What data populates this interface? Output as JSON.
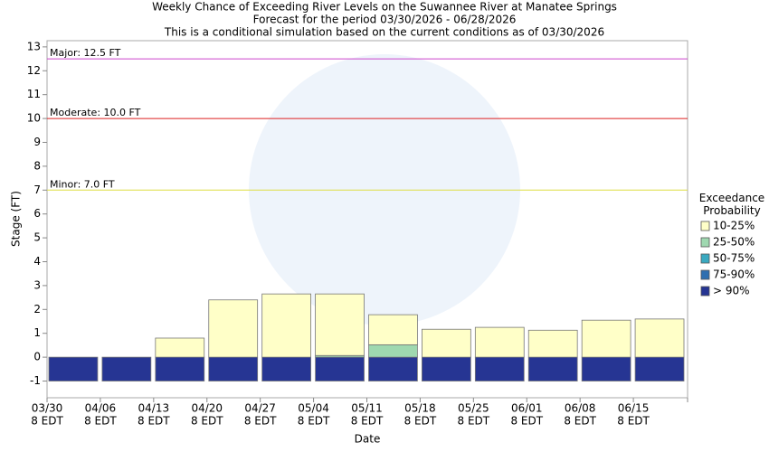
{
  "chart_data": {
    "type": "stacked_bar",
    "title": "Weekly Chance of Exceeding River Levels on the Suwannee River at Manatee Springs",
    "subtitle": "Forecast for the period 03/30/2026 - 06/28/2026",
    "subtitle2": "This is a conditional simulation based on the current conditions as of 03/30/2026",
    "x_label": "Date",
    "y_label": "Stage (FT)",
    "categories": [
      "03/30",
      "04/06",
      "04/13",
      "04/20",
      "04/27",
      "05/04",
      "05/11",
      "05/18",
      "05/25",
      "06/01",
      "06/08",
      "06/15"
    ],
    "category_times": [
      "8 EDT",
      "8 EDT",
      "8 EDT",
      "8 EDT",
      "8 EDT",
      "8 EDT",
      "8 EDT",
      "8 EDT",
      "8 EDT",
      "8 EDT",
      "8 EDT",
      "8 EDT"
    ],
    "series": [
      {
        "name": "> 90%",
        "color": "#263593",
        "values": [
          1,
          1,
          1,
          1,
          1,
          1,
          1,
          1,
          1,
          1,
          1,
          1
        ]
      },
      {
        "name": "75-90%",
        "color": "#2f6fb0",
        "values": [
          0,
          0,
          0,
          0,
          0,
          0,
          0,
          0,
          0,
          0,
          0,
          0
        ]
      },
      {
        "name": "50-75%",
        "color": "#3aa9c0",
        "values": [
          0,
          0,
          0,
          0,
          0,
          0,
          0,
          0,
          0,
          0,
          0,
          0
        ]
      },
      {
        "name": "25-50%",
        "color": "#9fd8b0",
        "values": [
          0,
          0,
          0,
          0,
          0,
          0.07,
          0.52,
          0,
          0,
          0,
          0,
          0
        ]
      },
      {
        "name": "10-25%",
        "color": "#ffffc8",
        "values": [
          0,
          0,
          0.8,
          2.4,
          2.65,
          2.58,
          1.26,
          1.17,
          1.25,
          1.13,
          1.55,
          1.6
        ]
      }
    ],
    "legend_title": "Exceedance Probability",
    "thresholds": [
      {
        "label": "Major: 12.5 FT",
        "value": 12.5,
        "color": "#cc44cc"
      },
      {
        "label": "Moderate: 10.0 FT",
        "value": 10.0,
        "color": "#dd2222"
      },
      {
        "label": "Minor: 7.0 FT",
        "value": 7.0,
        "color": "#dddd44"
      }
    ],
    "ylim": [
      -1.7,
      13.26
    ],
    "yticks": [
      -1,
      0,
      1,
      2,
      3,
      4,
      5,
      6,
      7,
      8,
      9,
      10,
      11,
      12,
      13
    ]
  }
}
